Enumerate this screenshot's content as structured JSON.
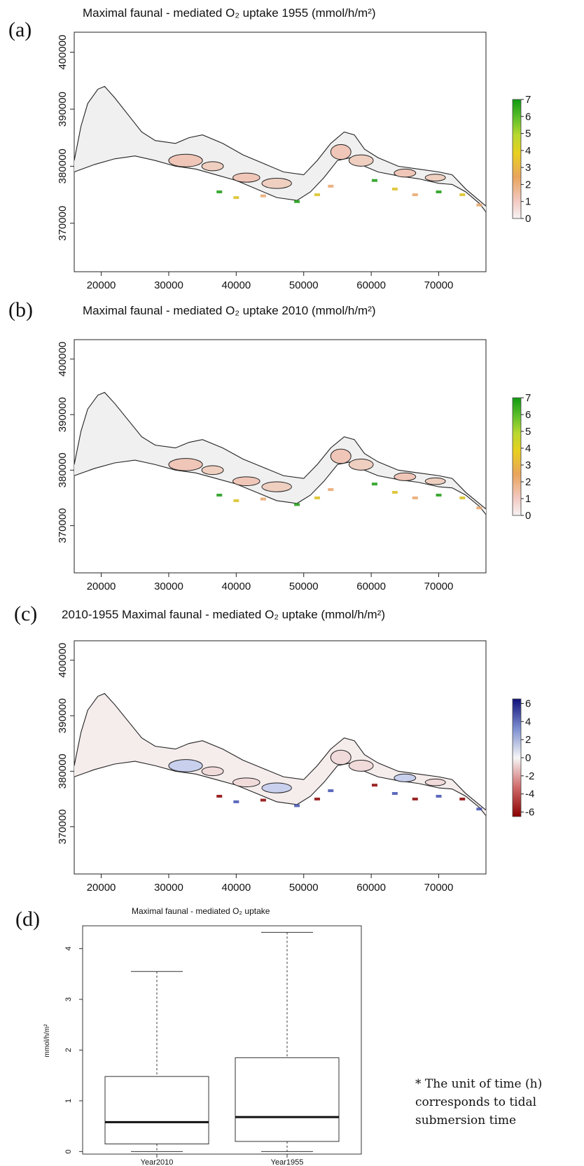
{
  "chart_data": [
    {
      "panel": "(a)",
      "type": "heatmap",
      "title": "Maximal faunal - mediated O₂ uptake 1955 (mmol/h/m²)",
      "xticks": [
        20000,
        30000,
        40000,
        50000,
        60000,
        70000
      ],
      "yticks": [
        370000,
        380000,
        390000,
        400000
      ],
      "xlim": [
        16000,
        77000
      ],
      "ylim": [
        361500,
        403500
      ],
      "legend": {
        "ticks": [
          0,
          1,
          2,
          3,
          4,
          5,
          6,
          7
        ],
        "range": [
          0,
          7
        ],
        "palette": "heat-green"
      }
    },
    {
      "panel": "(b)",
      "type": "heatmap",
      "title": "Maximal faunal - mediated O₂ uptake 2010 (mmol/h/m²)",
      "xticks": [
        20000,
        30000,
        40000,
        50000,
        60000,
        70000
      ],
      "yticks": [
        370000,
        380000,
        390000,
        400000
      ],
      "xlim": [
        16000,
        77000
      ],
      "ylim": [
        361500,
        403500
      ],
      "legend": {
        "ticks": [
          0,
          1,
          2,
          3,
          4,
          5,
          6,
          7
        ],
        "range": [
          0,
          7
        ],
        "palette": "heat-green"
      }
    },
    {
      "panel": "(c)",
      "type": "heatmap",
      "title": "2010-1955 Maximal faunal - mediated O₂ uptake (mmol/h/m²)",
      "xticks": [
        20000,
        30000,
        40000,
        50000,
        60000,
        70000
      ],
      "yticks": [
        370000,
        380000,
        390000,
        400000
      ],
      "xlim": [
        16000,
        77000
      ],
      "ylim": [
        361500,
        403500
      ],
      "legend": {
        "ticks": [
          6,
          4,
          2,
          0,
          -2,
          -4,
          -6
        ],
        "range": [
          -6.5,
          6.5
        ],
        "palette": "blue-red"
      }
    },
    {
      "panel": "(d)",
      "type": "box",
      "title": "Maximal faunal - mediated O₂ uptake",
      "ylabel": "mmol/h/m²",
      "categories": [
        "Year2010",
        "Year1955"
      ],
      "boxes": [
        {
          "name": "Year2010",
          "min": 0.0,
          "q1": 0.15,
          "median": 0.58,
          "q3": 1.48,
          "max": 3.55
        },
        {
          "name": "Year1955",
          "min": 0.0,
          "q1": 0.2,
          "median": 0.68,
          "q3": 1.85,
          "max": 4.32
        }
      ],
      "yticks": [
        0,
        1,
        2,
        3,
        4
      ],
      "ylim": [
        -0.05,
        4.45
      ]
    }
  ],
  "palette": {
    "background_fill": "#f0f0f0",
    "heat_low": "#f5eeee",
    "heat_mid": "#e8a46a",
    "heat_high": "#1a9a10",
    "diff_pos": "#1a1a8a",
    "diff_neg": "#8b0000"
  },
  "note": "* The unit of time (h) corresponds to tidal submersion time"
}
